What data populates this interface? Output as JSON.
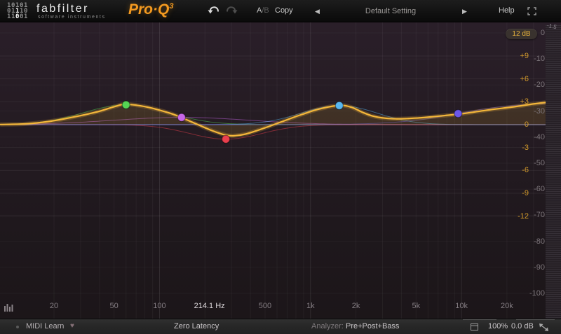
{
  "header": {
    "logo": {
      "binary_rows": [
        "10101",
        "01110",
        "11001"
      ],
      "highlights": [
        [
          1,
          2
        ],
        [
          2,
          2
        ]
      ],
      "brand": "fabfilter",
      "tagline": "software instruments",
      "product": "Pro·Q",
      "product_sup": "3"
    },
    "toolbar": {
      "ab_a": "A",
      "ab_b": "/B",
      "copy": "Copy",
      "prev_arrow": "◀",
      "preset": "Default Setting",
      "next_arrow": "▶",
      "help": "Help"
    }
  },
  "chart_data": {
    "type": "line",
    "x_scale": "log",
    "x_unit": "Hz",
    "freq_range": [
      9,
      36000
    ],
    "gain_range_db": [
      -12,
      12
    ],
    "freq_ticks": [
      {
        "f": 20,
        "label": "20"
      },
      {
        "f": 50,
        "label": "50"
      },
      {
        "f": 100,
        "label": "100"
      },
      {
        "f": 500,
        "label": "500"
      },
      {
        "f": 1000,
        "label": "1k"
      },
      {
        "f": 2000,
        "label": "2k"
      },
      {
        "f": 5000,
        "label": "5k"
      },
      {
        "f": 10000,
        "label": "10k"
      },
      {
        "f": 20000,
        "label": "20k"
      }
    ],
    "cursor_readout": {
      "f": 214.1,
      "label": "214.1 Hz"
    },
    "gain_scale": {
      "range_label": "12 dB",
      "ticks": [
        {
          "db": 9,
          "label": "+9"
        },
        {
          "db": 6,
          "label": "+6"
        },
        {
          "db": 3,
          "label": "+3"
        },
        {
          "db": 0,
          "label": "0"
        },
        {
          "db": -3,
          "label": "-3"
        },
        {
          "db": -6,
          "label": "-6"
        },
        {
          "db": -9,
          "label": "-9"
        },
        {
          "db": -12,
          "label": "-12"
        }
      ]
    },
    "analyzer_scale": {
      "ticks": [
        {
          "db": 0,
          "label": "0"
        },
        {
          "db": -10,
          "label": "-10"
        },
        {
          "db": -20,
          "label": "-20"
        },
        {
          "db": -30,
          "label": "-30"
        },
        {
          "db": -40,
          "label": "-40"
        },
        {
          "db": -50,
          "label": "-50"
        },
        {
          "db": -60,
          "label": "-60"
        },
        {
          "db": -70,
          "label": "-70"
        },
        {
          "db": -80,
          "label": "-80"
        },
        {
          "db": -90,
          "label": "-90"
        },
        {
          "db": -100,
          "label": "-100"
        }
      ]
    },
    "meter_peak_label": "-1.5",
    "bands": [
      {
        "id": 1,
        "type": "bell",
        "freq": 60,
        "gain_db": 2.6,
        "width_oct": 0.28,
        "color": "#55d454"
      },
      {
        "id": 2,
        "type": "bell",
        "freq": 140,
        "gain_db": 0.95,
        "width_oct": 0.45,
        "color": "#c767e8"
      },
      {
        "id": 3,
        "type": "bell",
        "freq": 275,
        "gain_db": -1.9,
        "width_oct": 0.24,
        "color": "#ea3f4e"
      },
      {
        "id": 4,
        "type": "bell",
        "freq": 1550,
        "gain_db": 2.5,
        "width_oct": 0.25,
        "color": "#58b7f0"
      },
      {
        "id": 5,
        "type": "shelf_high",
        "freq": 9500,
        "gain_db": 2.9,
        "dot_gain_db": 1.45,
        "color": "#6b57e8"
      }
    ],
    "sum_curve": [
      [
        8.8,
        0.02
      ],
      [
        13,
        0.1
      ],
      [
        19,
        0.45
      ],
      [
        27,
        1.0
      ],
      [
        39,
        1.7
      ],
      [
        51,
        2.4
      ],
      [
        60,
        2.68
      ],
      [
        83,
        2.3
      ],
      [
        115,
        1.55
      ],
      [
        140,
        0.92
      ],
      [
        175,
        0.1
      ],
      [
        217,
        -0.7
      ],
      [
        275,
        -1.38
      ],
      [
        316,
        -1.45
      ],
      [
        371,
        -1.24
      ],
      [
        450,
        -0.73
      ],
      [
        540,
        -0.18
      ],
      [
        668,
        0.5
      ],
      [
        875,
        1.33
      ],
      [
        1147,
        2.06
      ],
      [
        1550,
        2.52
      ],
      [
        1860,
        2.29
      ],
      [
        2190,
        1.65
      ],
      [
        2580,
        1.13
      ],
      [
        3100,
        0.85
      ],
      [
        3670,
        0.76
      ],
      [
        4400,
        0.8
      ],
      [
        5270,
        0.89
      ],
      [
        6230,
        1.01
      ],
      [
        7500,
        1.17
      ],
      [
        9500,
        1.38
      ],
      [
        10700,
        1.5
      ],
      [
        15400,
        1.95
      ],
      [
        21500,
        2.3
      ],
      [
        30000,
        2.72
      ],
      [
        36000,
        2.9
      ]
    ]
  },
  "status_bar": {
    "midi_learn": "MIDI Learn",
    "heart": "♥",
    "zero_latency": "Zero Latency",
    "analyzer_label": "Analyzer:",
    "analyzer_value": "Pre+Post+Bass",
    "scale_pct": "100%",
    "output_gain": "0.0 dB"
  },
  "colors": {
    "brand_orange": "#f49a20",
    "curve_yellow": "#f4b73a",
    "scale_yellow": "#d49b2b",
    "zero_line": "#9b85c6"
  }
}
